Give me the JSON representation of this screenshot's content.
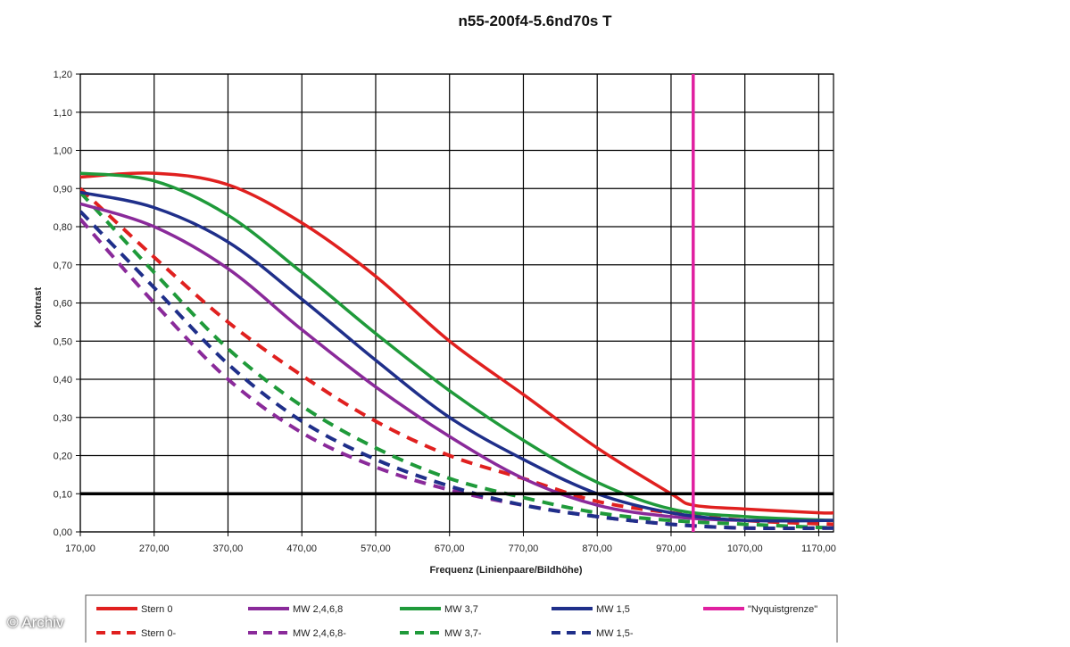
{
  "chart_data": {
    "type": "line",
    "title": "n55-200f4-5.6nd70s T",
    "xlabel": "Frequenz (Linienpaare/Bildhöhe)",
    "ylabel": "Kontrast",
    "xlim": [
      170,
      1190
    ],
    "ylim": [
      0,
      1.2
    ],
    "x_ticks": [
      "170,00",
      "270,00",
      "370,00",
      "470,00",
      "570,00",
      "670,00",
      "770,00",
      "870,00",
      "970,00",
      "1070,00",
      "1170,00"
    ],
    "y_ticks": [
      "0,00",
      "0,10",
      "0,20",
      "0,30",
      "0,40",
      "0,50",
      "0,60",
      "0,70",
      "0,80",
      "0,90",
      "1,00",
      "1,10",
      "1,20"
    ],
    "grid": true,
    "legend_position": "bottom",
    "colors": {
      "red": "#e0201f",
      "purple": "#8a2a9a",
      "green": "#1f9a3a",
      "blue": "#1f2f8a",
      "magenta": "#e020a0",
      "black": "#000000"
    },
    "series": [
      {
        "name": "Stern 0",
        "color": "#e0201f",
        "dashed": false,
        "x": [
          170,
          270,
          370,
          470,
          570,
          670,
          770,
          870,
          970,
          1000,
          1070,
          1170,
          1190
        ],
        "y": [
          0.93,
          0.94,
          0.91,
          0.81,
          0.67,
          0.5,
          0.36,
          0.22,
          0.1,
          0.07,
          0.06,
          0.05,
          0.05
        ]
      },
      {
        "name": "MW 2,4,6,8",
        "color": "#8a2a9a",
        "dashed": false,
        "x": [
          170,
          270,
          370,
          470,
          570,
          670,
          770,
          870,
          970,
          1070,
          1190
        ],
        "y": [
          0.86,
          0.8,
          0.69,
          0.53,
          0.38,
          0.25,
          0.14,
          0.07,
          0.04,
          0.03,
          0.03
        ]
      },
      {
        "name": "MW 3,7",
        "color": "#1f9a3a",
        "dashed": false,
        "x": [
          170,
          270,
          370,
          470,
          570,
          670,
          770,
          870,
          970,
          1070,
          1190
        ],
        "y": [
          0.94,
          0.92,
          0.83,
          0.68,
          0.52,
          0.37,
          0.24,
          0.13,
          0.06,
          0.04,
          0.03
        ]
      },
      {
        "name": "MW 1,5",
        "color": "#1f2f8a",
        "dashed": false,
        "x": [
          170,
          270,
          370,
          470,
          570,
          670,
          770,
          870,
          970,
          1070,
          1190
        ],
        "y": [
          0.89,
          0.85,
          0.76,
          0.61,
          0.45,
          0.3,
          0.19,
          0.1,
          0.05,
          0.03,
          0.03
        ]
      },
      {
        "name": "\"Nyquistgrenze\"",
        "color": "#e020a0",
        "dashed": false,
        "vertical": true,
        "x": [
          1000,
          1000
        ],
        "y": [
          0,
          1.2
        ]
      },
      {
        "name": "Stern 0-",
        "color": "#e0201f",
        "dashed": true,
        "x": [
          170,
          270,
          370,
          470,
          570,
          670,
          770,
          870,
          970,
          1070,
          1190
        ],
        "y": [
          0.9,
          0.72,
          0.55,
          0.41,
          0.29,
          0.2,
          0.14,
          0.08,
          0.05,
          0.03,
          0.02
        ]
      },
      {
        "name": "MW 2,4,6,8-",
        "color": "#8a2a9a",
        "dashed": true,
        "x": [
          170,
          270,
          370,
          470,
          570,
          670,
          770,
          870,
          970,
          1070,
          1190
        ],
        "y": [
          0.82,
          0.6,
          0.4,
          0.26,
          0.17,
          0.11,
          0.07,
          0.04,
          0.02,
          0.01,
          0.01
        ]
      },
      {
        "name": "MW 3,7-",
        "color": "#1f9a3a",
        "dashed": true,
        "x": [
          170,
          270,
          370,
          470,
          570,
          670,
          770,
          870,
          970,
          1070,
          1190
        ],
        "y": [
          0.89,
          0.68,
          0.48,
          0.33,
          0.22,
          0.14,
          0.09,
          0.05,
          0.03,
          0.02,
          0.01
        ]
      },
      {
        "name": "MW 1,5-",
        "color": "#1f2f8a",
        "dashed": true,
        "x": [
          170,
          270,
          370,
          470,
          570,
          670,
          770,
          870,
          970,
          1070,
          1190
        ],
        "y": [
          0.84,
          0.64,
          0.44,
          0.29,
          0.19,
          0.12,
          0.07,
          0.04,
          0.02,
          0.01,
          0.01
        ]
      }
    ],
    "reference_line": {
      "y": 0.1,
      "color": "#000000"
    },
    "legend": [
      {
        "label": "Stern 0",
        "color": "#e0201f",
        "dashed": false
      },
      {
        "label": "MW 2,4,6,8",
        "color": "#8a2a9a",
        "dashed": false
      },
      {
        "label": "MW 3,7",
        "color": "#1f9a3a",
        "dashed": false
      },
      {
        "label": "MW 1,5",
        "color": "#1f2f8a",
        "dashed": false
      },
      {
        "label": "\"Nyquistgrenze\"",
        "color": "#e020a0",
        "dashed": false
      },
      {
        "label": "Stern 0-",
        "color": "#e0201f",
        "dashed": true
      },
      {
        "label": "MW 2,4,6,8-",
        "color": "#8a2a9a",
        "dashed": true
      },
      {
        "label": "MW 3,7-",
        "color": "#1f9a3a",
        "dashed": true
      },
      {
        "label": "MW 1,5-",
        "color": "#1f2f8a",
        "dashed": true
      }
    ]
  },
  "watermark": "© Archiv"
}
